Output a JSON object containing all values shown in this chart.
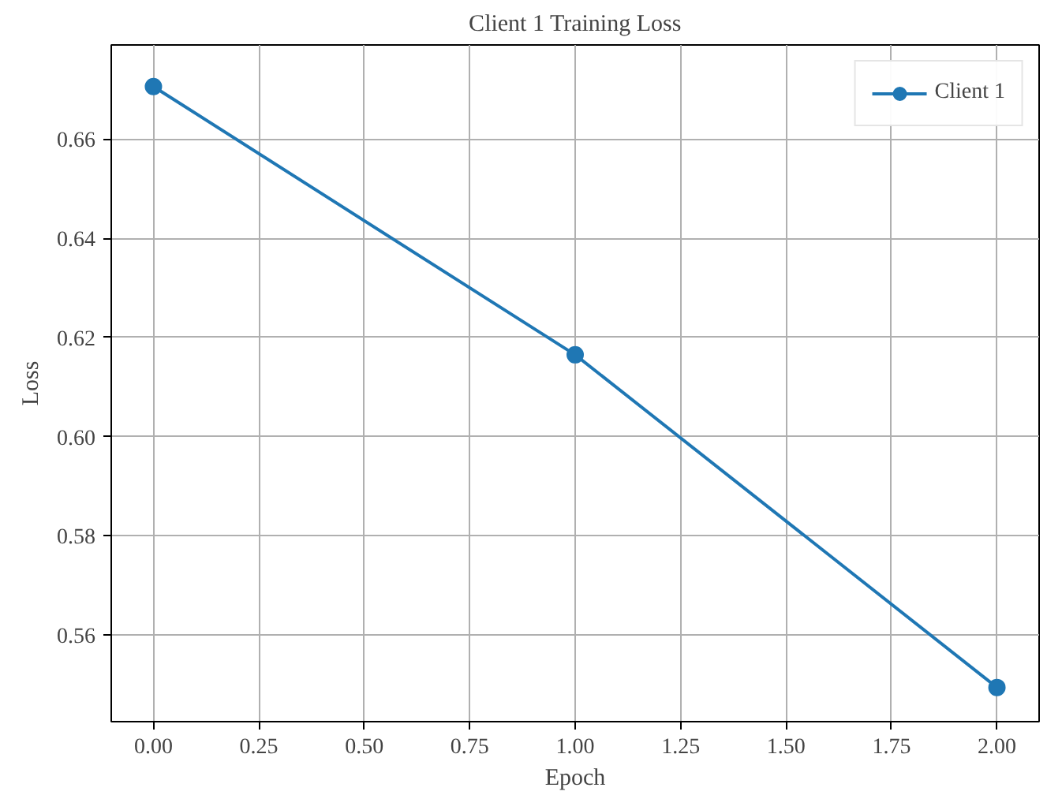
{
  "chart_data": {
    "type": "line",
    "title": "Client 1 Training Loss",
    "xlabel": "Epoch",
    "ylabel": "Loss",
    "x": [
      0,
      1,
      2
    ],
    "series": [
      {
        "name": "Client 1",
        "color": "#1f77b4",
        "values": [
          0.6706,
          0.6165,
          0.5494
        ]
      }
    ],
    "xlim": [
      -0.1,
      2.1
    ],
    "ylim": [
      0.5425,
      0.679
    ],
    "xticks": [
      {
        "value": 0,
        "label": "0.00"
      },
      {
        "value": 0.25,
        "label": "0.25"
      },
      {
        "value": 0.5,
        "label": "0.50"
      },
      {
        "value": 0.75,
        "label": "0.75"
      },
      {
        "value": 1,
        "label": "1.00"
      },
      {
        "value": 1.25,
        "label": "1.25"
      },
      {
        "value": 1.5,
        "label": "1.50"
      },
      {
        "value": 1.75,
        "label": "1.75"
      },
      {
        "value": 2,
        "label": "2.00"
      }
    ],
    "yticks": [
      {
        "value": 0.56,
        "label": "0.56"
      },
      {
        "value": 0.58,
        "label": "0.58"
      },
      {
        "value": 0.6,
        "label": "0.60"
      },
      {
        "value": 0.62,
        "label": "0.62"
      },
      {
        "value": 0.64,
        "label": "0.64"
      },
      {
        "value": 0.66,
        "label": "0.66"
      }
    ],
    "grid": true,
    "legend": "top right",
    "marker": "circle",
    "line_style": "solid"
  }
}
